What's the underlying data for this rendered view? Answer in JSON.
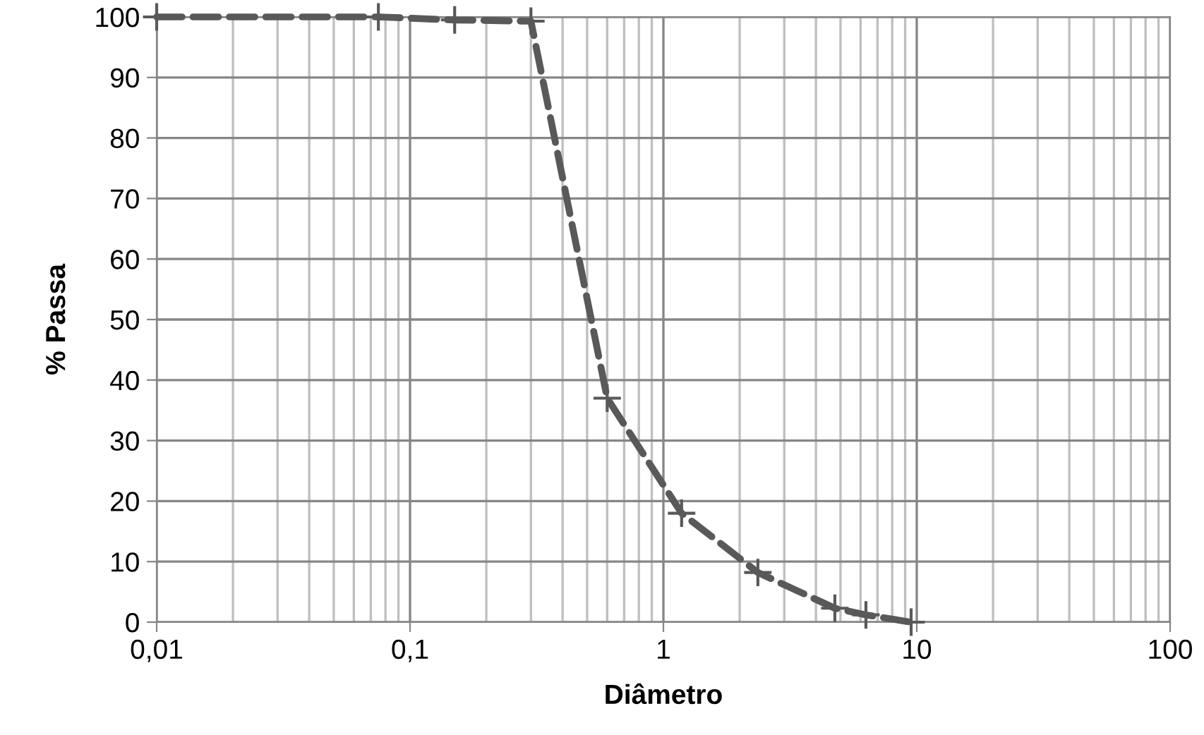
{
  "chart_data": {
    "type": "line",
    "xlabel": "Diâmetro",
    "ylabel": "% Passa",
    "log": "x",
    "grid": true,
    "marker": "cross",
    "line_style": "dashed",
    "xlim": [
      0.01,
      100
    ],
    "xticks": [
      {
        "value": 0.01,
        "label": "0,01"
      },
      {
        "value": 0.1,
        "label": "0,1"
      },
      1,
      10,
      100
    ],
    "ylim": [
      0,
      100
    ],
    "yticks": [
      0,
      10,
      20,
      30,
      40,
      50,
      60,
      70,
      80,
      90,
      100
    ],
    "series": [
      {
        "color": "#595959",
        "x": [
          0.01,
          0.075,
          0.15,
          0.3,
          0.6,
          1.18,
          2.36,
          4.75,
          6.3,
          9.5
        ],
        "values": [
          100,
          100,
          99.5,
          99.3,
          37,
          18,
          8.2,
          2.3,
          1.2,
          0
        ]
      }
    ]
  }
}
